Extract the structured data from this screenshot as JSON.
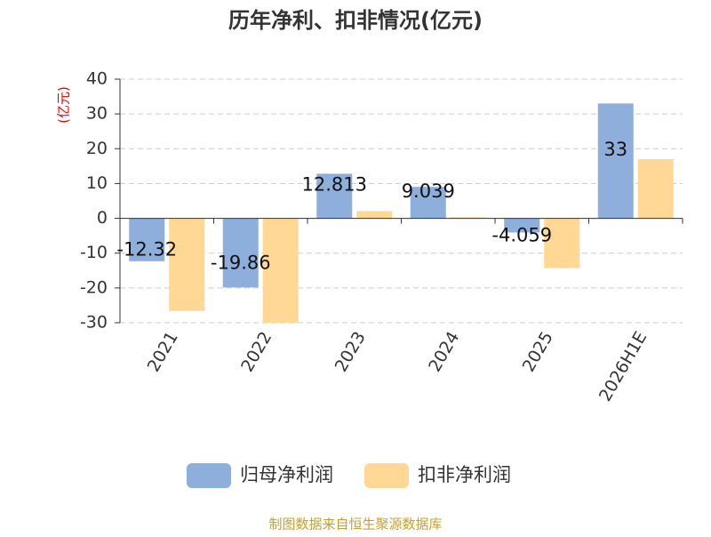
{
  "chart_data": {
    "type": "bar",
    "title": "历年净利、扣非情况(亿元)",
    "y_label": "(亿元)",
    "categories": [
      "2021",
      "2022",
      "2023",
      "2024",
      "2025",
      "2026H1E"
    ],
    "series": [
      {
        "name": "归母净利润",
        "color": "#8eaedb",
        "show_labels": true,
        "values": [
          -12.32,
          -19.86,
          12.813,
          9.039,
          -4.059,
          33
        ]
      },
      {
        "name": "扣非净利润",
        "color": "#ffd896",
        "show_labels": false,
        "values": [
          -26.6,
          -30,
          2.1,
          0.3,
          -14.3,
          17
        ]
      }
    ],
    "ylim": [
      -30,
      40
    ],
    "yticks": [
      -30,
      -20,
      -10,
      0,
      10,
      20,
      30,
      40
    ],
    "grid": true,
    "source": "制图数据来自恒生聚源数据库"
  }
}
